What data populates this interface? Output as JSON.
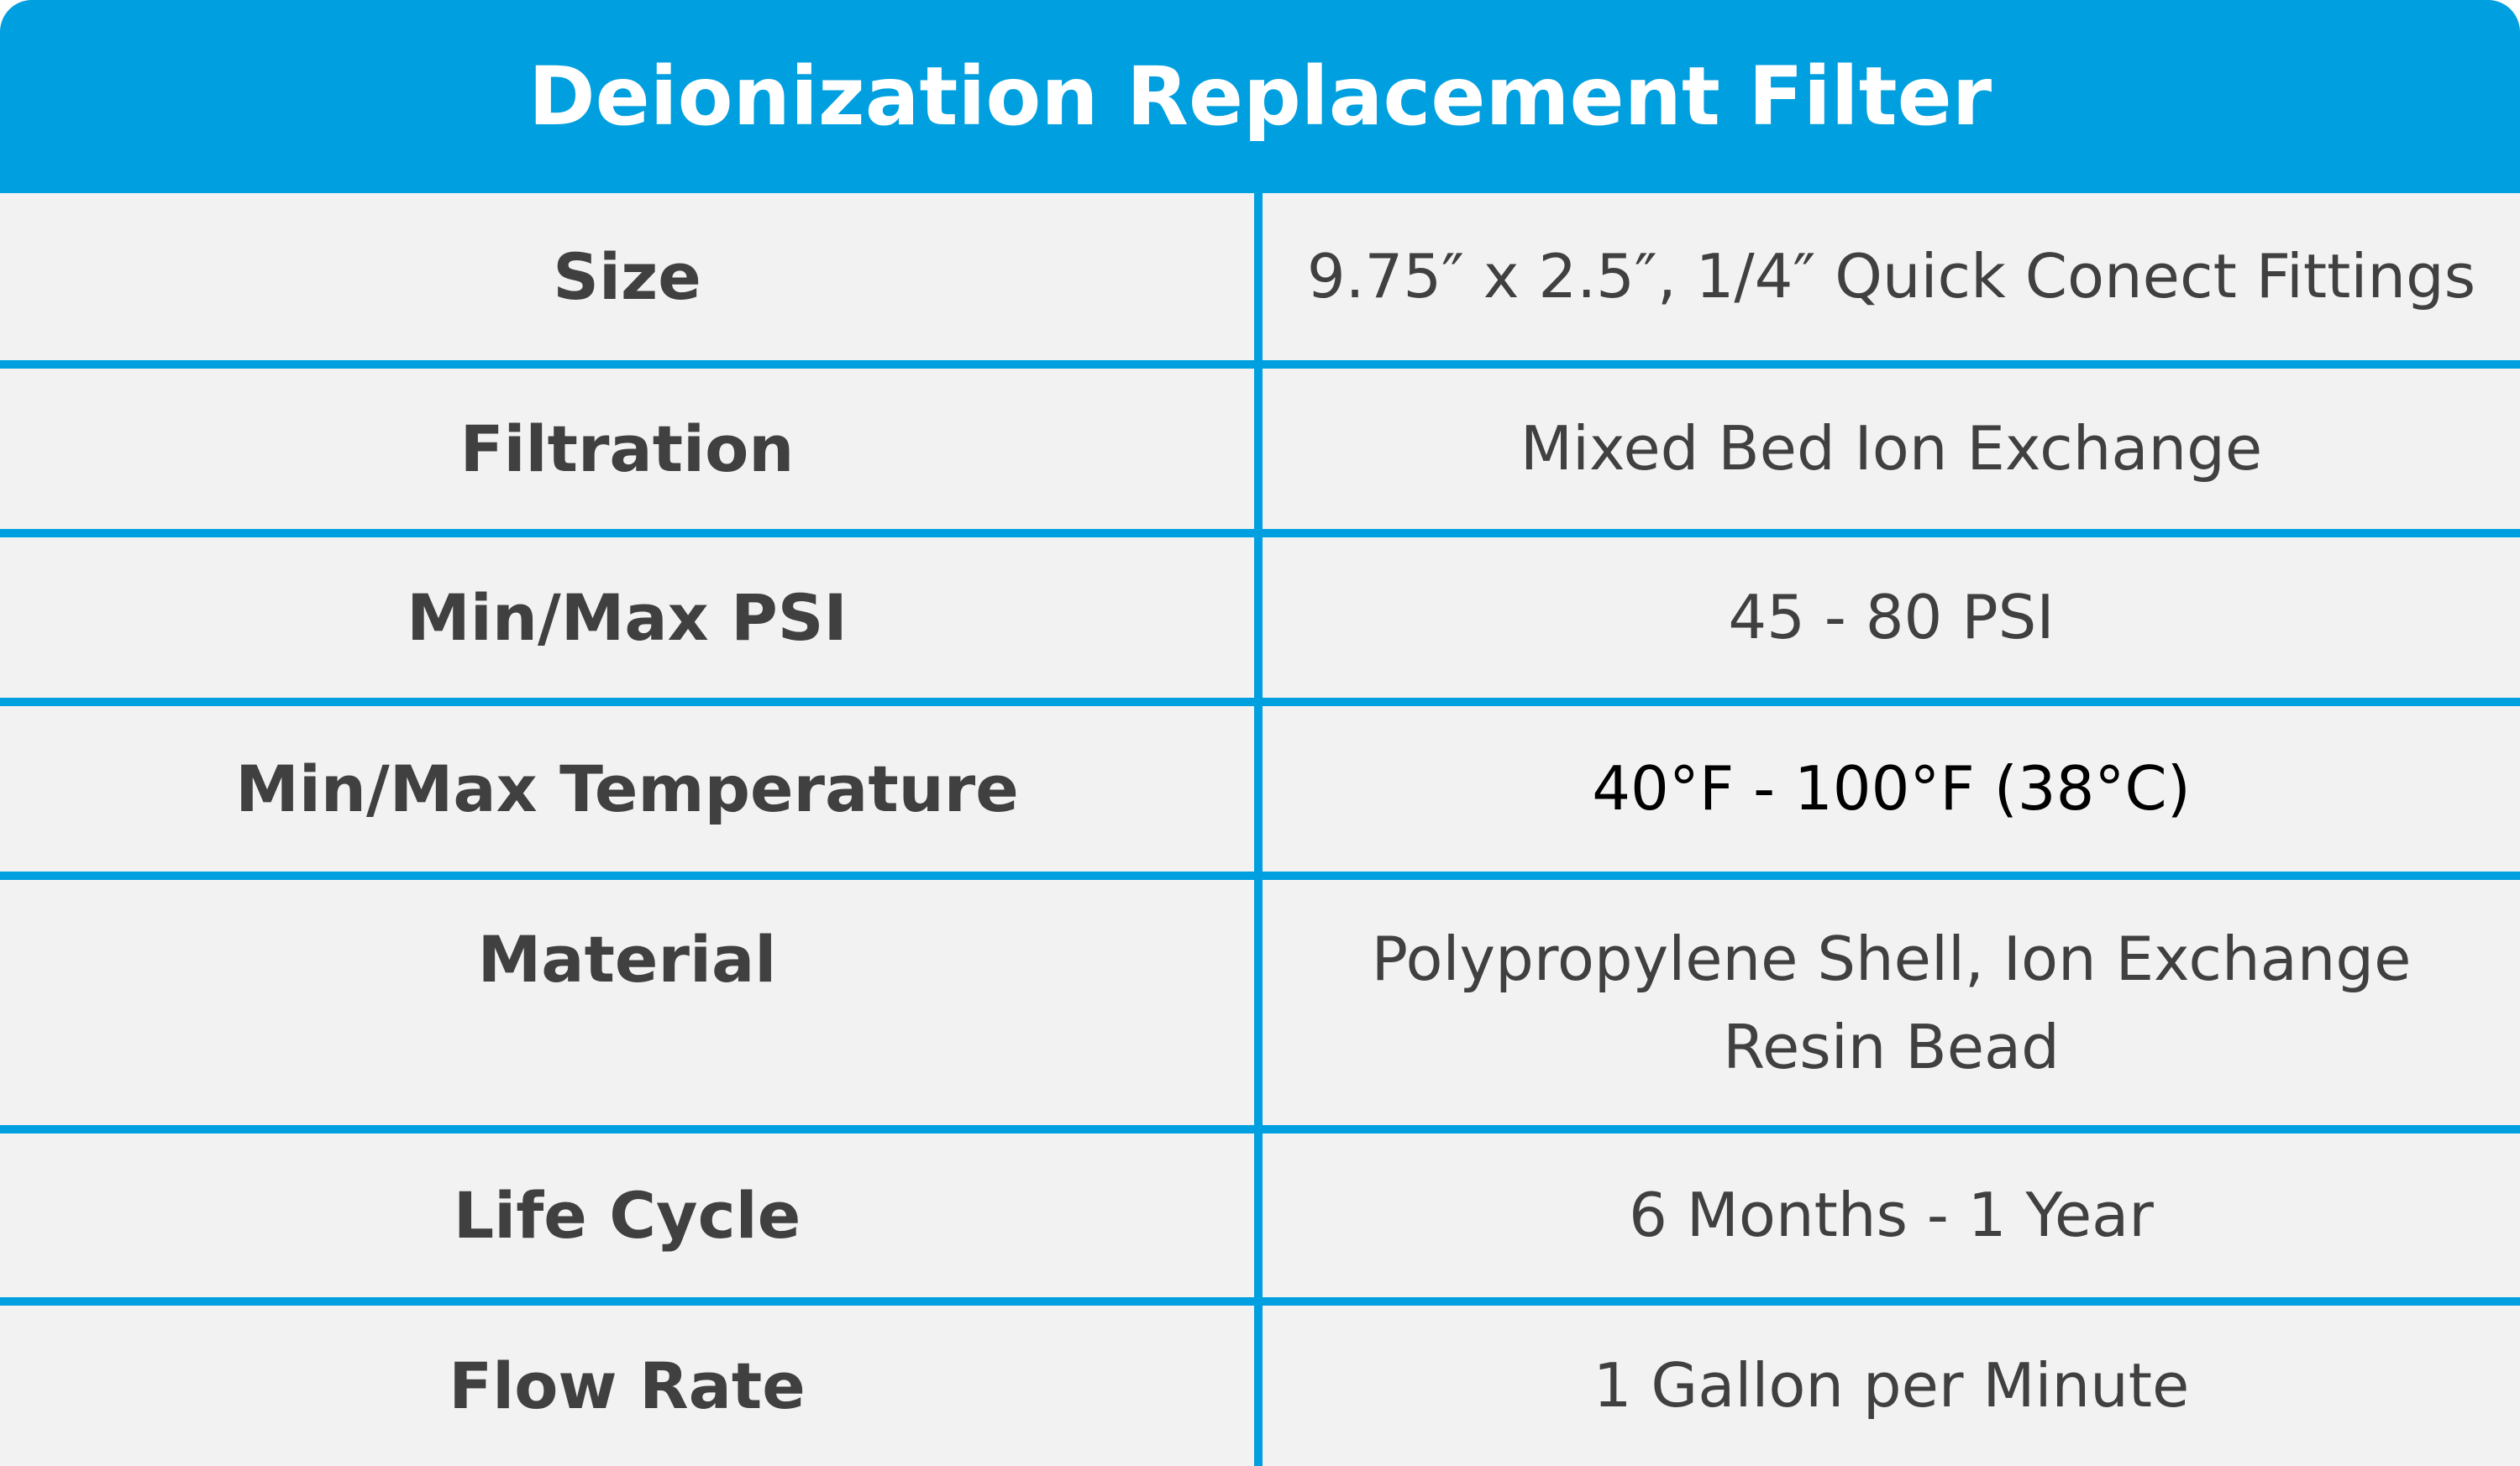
{
  "header": {
    "title": "Deionization Replacement Filter"
  },
  "table": {
    "rows": [
      [
        "Size",
        "9.75″ x 2.5″, 1/4″ Quick Conect Fittings"
      ],
      [
        "Filtration",
        "Mixed Bed Ion Exchange"
      ],
      [
        "Min/Max PSI",
        "45 - 80 PSI"
      ],
      [
        "Min/Max Temperature",
        "40°F - 100°F (38°C)"
      ],
      [
        "Material",
        "Polypropylene Shell, Ion Exchange Resin Bead"
      ],
      [
        "Life Cycle",
        "6 Months - 1 Year"
      ],
      [
        "Flow Rate",
        "1 Gallon per Minute"
      ]
    ]
  }
}
